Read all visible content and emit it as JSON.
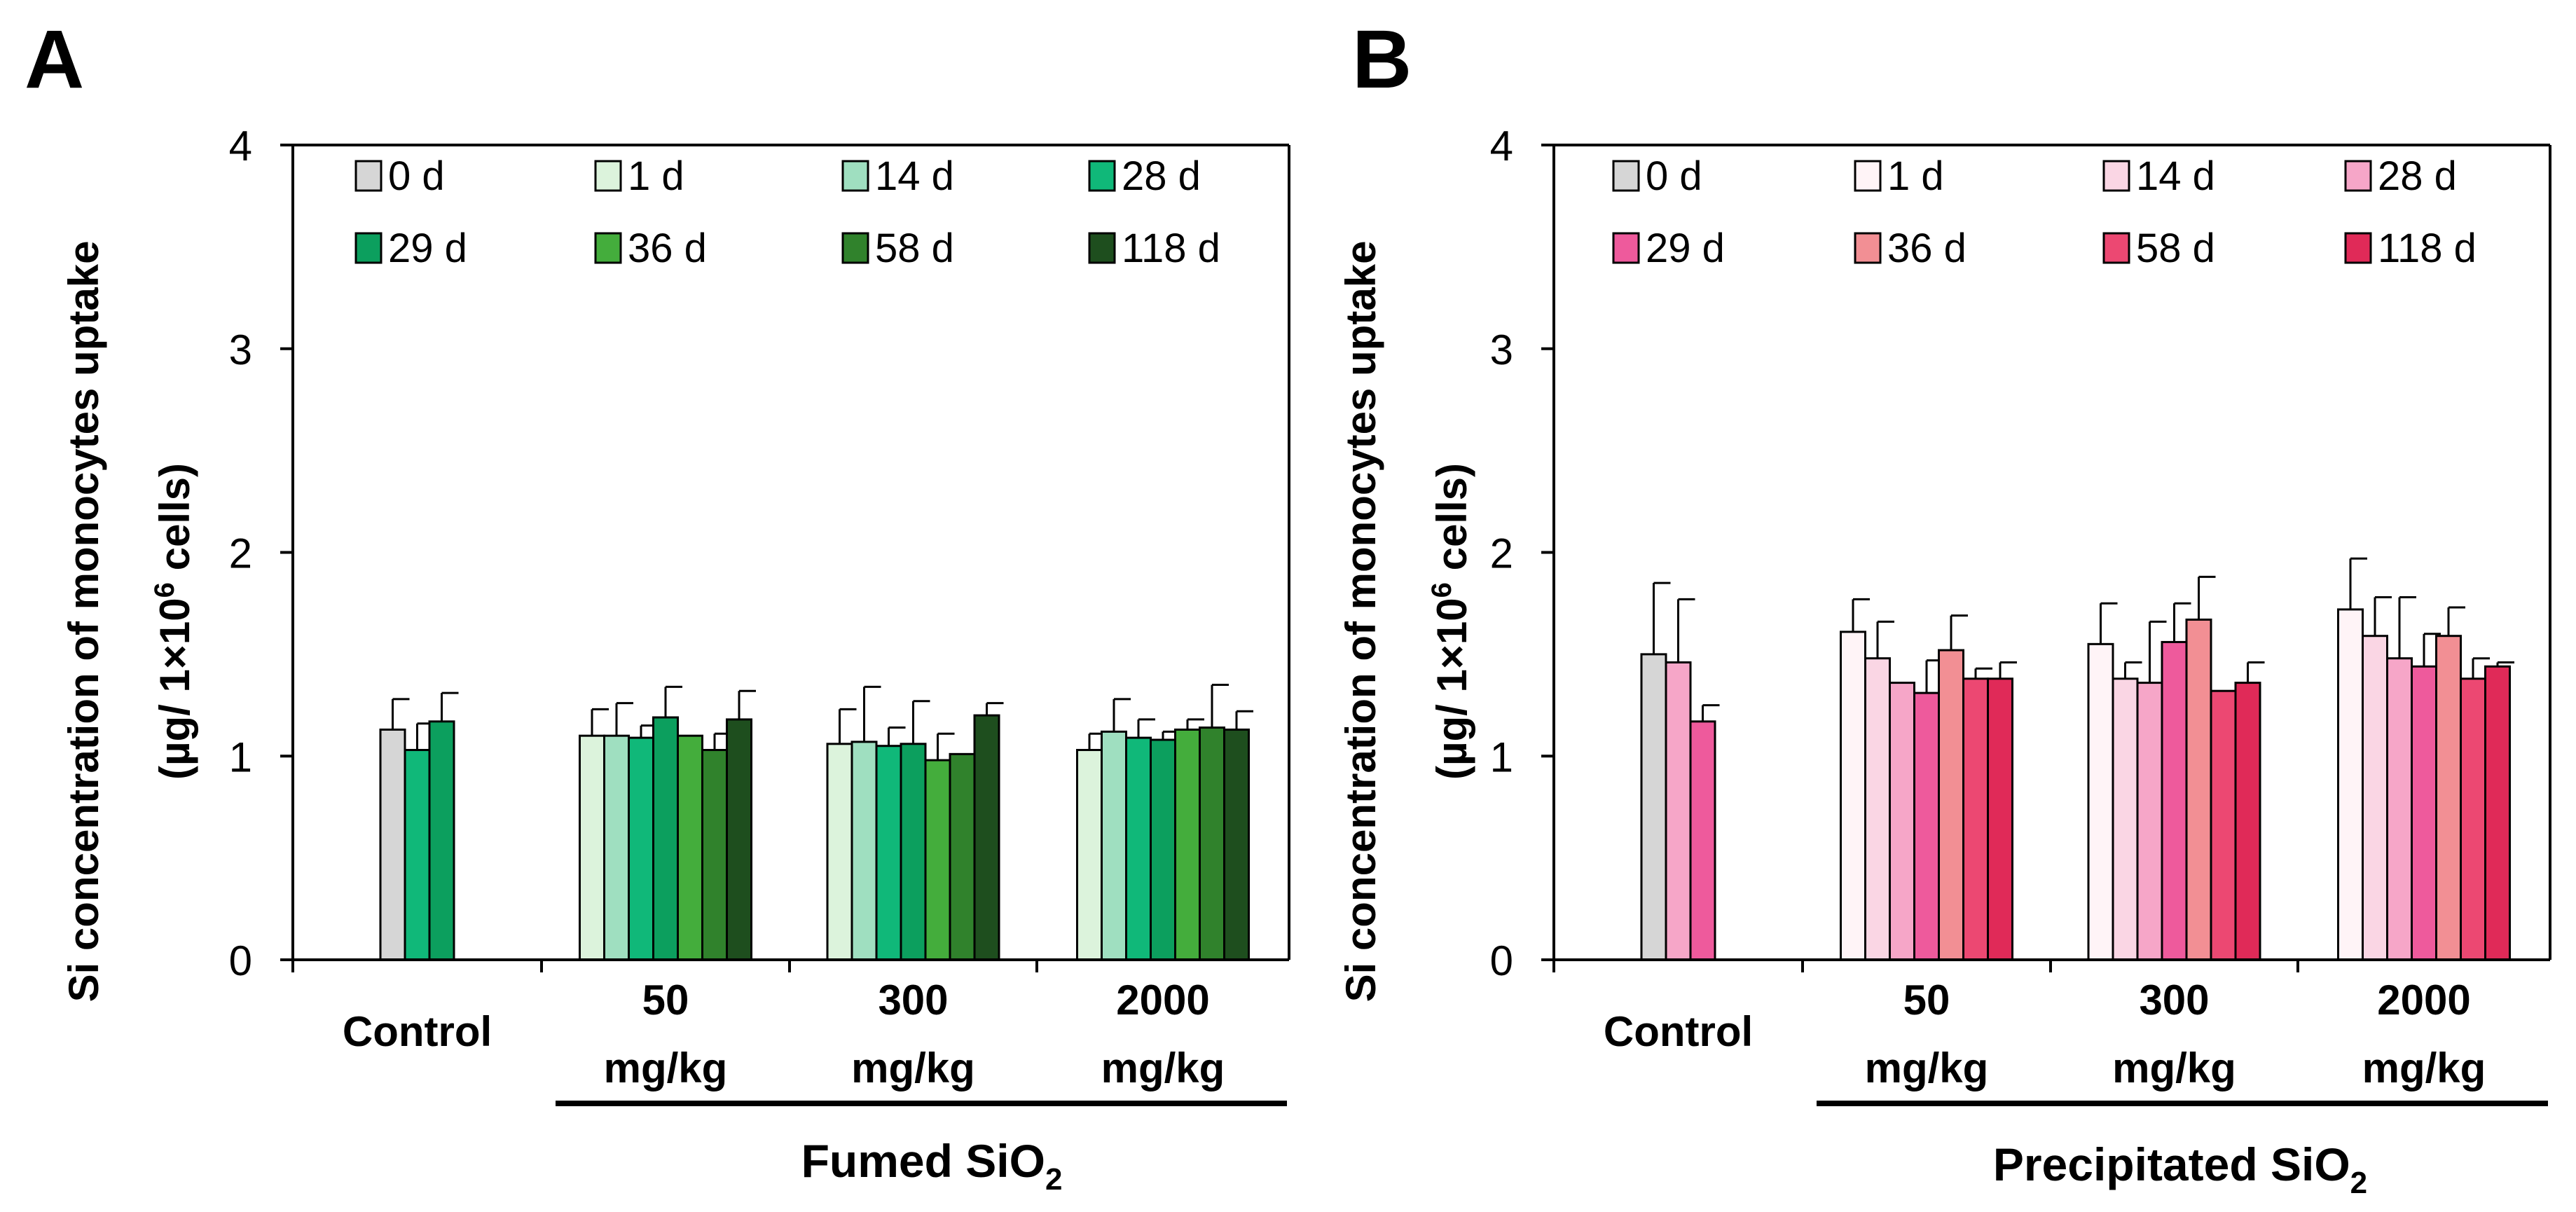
{
  "chart_data": [
    {
      "panel": "A",
      "type": "bar",
      "ylabel_line1": "Si concentration of monocytes uptake",
      "ylabel_line2_pre": "(µg/ 1×10",
      "ylabel_line2_sup": "6",
      "ylabel_line2_post": " cells)",
      "ylim": [
        0,
        4
      ],
      "yticks": [
        "0",
        "1",
        "2",
        "3",
        "4"
      ],
      "group_title_pre": "Fumed SiO",
      "group_title_sub": "2",
      "categories": [
        {
          "label": [
            "Control"
          ],
          "values": [
            1.13,
            1.03,
            1.17
          ],
          "errors": [
            0.15,
            0.13,
            0.14
          ],
          "series": [
            0,
            3,
            4
          ]
        },
        {
          "label": [
            "50",
            "mg/kg"
          ],
          "values": [
            1.1,
            1.1,
            1.09,
            1.19,
            1.1,
            1.03,
            1.18
          ],
          "errors": [
            0.13,
            0.16,
            0.06,
            0.15,
            0.0,
            0.08,
            0.14
          ],
          "series": [
            1,
            2,
            3,
            4,
            5,
            6,
            7
          ]
        },
        {
          "label": [
            "300",
            "mg/kg"
          ],
          "values": [
            1.06,
            1.07,
            1.05,
            1.06,
            0.98,
            1.01,
            1.2
          ],
          "errors": [
            0.17,
            0.27,
            0.09,
            0.21,
            0.13,
            0.0,
            0.06
          ],
          "series": [
            1,
            2,
            3,
            4,
            5,
            6,
            7
          ]
        },
        {
          "label": [
            "2000",
            "mg/kg"
          ],
          "values": [
            1.03,
            1.12,
            1.09,
            1.08,
            1.13,
            1.14,
            1.13
          ],
          "errors": [
            0.08,
            0.16,
            0.09,
            0.04,
            0.05,
            0.21,
            0.09
          ],
          "series": [
            1,
            2,
            3,
            4,
            5,
            6,
            7
          ]
        }
      ],
      "legend": [
        {
          "name": "0 d",
          "color": "#d6d6d6"
        },
        {
          "name": "1 d",
          "color": "#dcf3dc"
        },
        {
          "name": "14 d",
          "color": "#9fdfc0"
        },
        {
          "name": "28 d",
          "color": "#10b879"
        },
        {
          "name": "29 d",
          "color": "#0c9f5e"
        },
        {
          "name": "36 d",
          "color": "#44ad3c"
        },
        {
          "name": "58 d",
          "color": "#30822c"
        },
        {
          "name": "118 d",
          "color": "#1e4e1e"
        }
      ]
    },
    {
      "panel": "B",
      "type": "bar",
      "ylabel_line1": "Si concentration of monocytes uptake",
      "ylabel_line2_pre": "(µg/ 1×10",
      "ylabel_line2_sup": "6",
      "ylabel_line2_post": " cells)",
      "ylim": [
        0,
        4
      ],
      "yticks": [
        "0",
        "1",
        "2",
        "3",
        "4"
      ],
      "group_title_pre": "Precipitated SiO",
      "group_title_sub": "2",
      "categories": [
        {
          "label": [
            "Control"
          ],
          "values": [
            1.5,
            1.46,
            1.17
          ],
          "errors": [
            0.35,
            0.31,
            0.08
          ],
          "series": [
            0,
            3,
            4
          ]
        },
        {
          "label": [
            "50",
            "mg/kg"
          ],
          "values": [
            1.61,
            1.48,
            1.36,
            1.31,
            1.52,
            1.38,
            1.38
          ],
          "errors": [
            0.16,
            0.18,
            0.0,
            0.16,
            0.17,
            0.05,
            0.08
          ],
          "series": [
            1,
            2,
            3,
            4,
            5,
            6,
            7
          ]
        },
        {
          "label": [
            "300",
            "mg/kg"
          ],
          "values": [
            1.55,
            1.38,
            1.36,
            1.56,
            1.67,
            1.32,
            1.36
          ],
          "errors": [
            0.2,
            0.08,
            0.3,
            0.19,
            0.21,
            0.0,
            0.1
          ],
          "series": [
            1,
            2,
            3,
            4,
            5,
            6,
            7
          ]
        },
        {
          "label": [
            "2000",
            "mg/kg"
          ],
          "values": [
            1.72,
            1.59,
            1.48,
            1.44,
            1.59,
            1.38,
            1.44
          ],
          "errors": [
            0.25,
            0.19,
            0.3,
            0.16,
            0.14,
            0.1,
            0.02
          ],
          "series": [
            1,
            2,
            3,
            4,
            5,
            6,
            7
          ]
        }
      ],
      "legend": [
        {
          "name": "0 d",
          "color": "#d6d6d6"
        },
        {
          "name": "1 d",
          "color": "#fff4f7"
        },
        {
          "name": "14 d",
          "color": "#fad6e4"
        },
        {
          "name": "28 d",
          "color": "#f6a6c8"
        },
        {
          "name": "29 d",
          "color": "#ee5a9c"
        },
        {
          "name": "36 d",
          "color": "#f28f94"
        },
        {
          "name": "58 d",
          "color": "#ec4872"
        },
        {
          "name": "118 d",
          "color": "#e02a58"
        }
      ]
    }
  ]
}
